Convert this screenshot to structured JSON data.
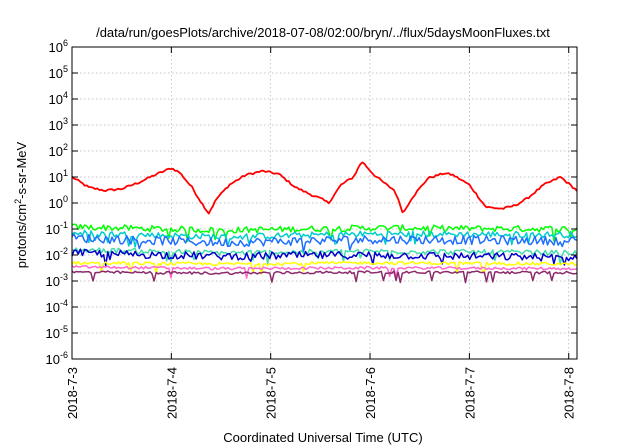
{
  "chart_data": {
    "type": "line",
    "title": "/data/run/goesPlots/archive/2018-07-08/02:00/bryn/../flux/5daysMoonFluxes.txt",
    "xlabel": "Coordinated Universal Time (UTC)",
    "ylabel": {
      "base": "protons/cm",
      "sup": "2",
      "rest": "-s-sr-MeV"
    },
    "y_scale": "log",
    "ylim": [
      1e-06,
      1000000.0
    ],
    "y_ticks": [
      {
        "value": 1e-06,
        "base": "10",
        "exp": "-6"
      },
      {
        "value": 1e-05,
        "base": "10",
        "exp": "-5"
      },
      {
        "value": 0.0001,
        "base": "10",
        "exp": "-4"
      },
      {
        "value": 0.001,
        "base": "10",
        "exp": "-3"
      },
      {
        "value": 0.01,
        "base": "10",
        "exp": "-2"
      },
      {
        "value": 0.1,
        "base": "10",
        "exp": "-1"
      },
      {
        "value": 1,
        "base": "10",
        "exp": "0"
      },
      {
        "value": 10,
        "base": "10",
        "exp": "1"
      },
      {
        "value": 100,
        "base": "10",
        "exp": "2"
      },
      {
        "value": 1000,
        "base": "10",
        "exp": "3"
      },
      {
        "value": 10000,
        "base": "10",
        "exp": "4"
      },
      {
        "value": 100000,
        "base": "10",
        "exp": "5"
      },
      {
        "value": 1000000,
        "base": "10",
        "exp": "6"
      }
    ],
    "xlim": [
      "2018-07-03T00:00",
      "2018-07-08T02:00"
    ],
    "x_ticks": [
      {
        "value": "2018-07-03T00:00",
        "label": "2018-7-3"
      },
      {
        "value": "2018-07-04T00:00",
        "label": "2018-7-4"
      },
      {
        "value": "2018-07-05T00:00",
        "label": "2018-7-5"
      },
      {
        "value": "2018-07-06T00:00",
        "label": "2018-7-6"
      },
      {
        "value": "2018-07-07T00:00",
        "label": "2018-7-7"
      },
      {
        "value": "2018-07-08T00:00",
        "label": "2018-7-8"
      }
    ],
    "grid": true,
    "series": [
      {
        "color": "#ff0000",
        "noise": 0.04,
        "points": [
          [
            "2018-07-03T00:00",
            10
          ],
          [
            "2018-07-03T04:00",
            4
          ],
          [
            "2018-07-03T08:00",
            3
          ],
          [
            "2018-07-03T12:00",
            3.5
          ],
          [
            "2018-07-03T16:00",
            6
          ],
          [
            "2018-07-03T20:00",
            12
          ],
          [
            "2018-07-04T00:00",
            22
          ],
          [
            "2018-07-04T02:00",
            15
          ],
          [
            "2018-07-04T05:00",
            4
          ],
          [
            "2018-07-04T07:00",
            1.2
          ],
          [
            "2018-07-04T09:00",
            0.4
          ],
          [
            "2018-07-04T11:00",
            1.5
          ],
          [
            "2018-07-04T14:00",
            5
          ],
          [
            "2018-07-04T18:00",
            12
          ],
          [
            "2018-07-04T22:00",
            17
          ],
          [
            "2018-07-05T02:00",
            13
          ],
          [
            "2018-07-05T06:00",
            4
          ],
          [
            "2018-07-05T10:00",
            2
          ],
          [
            "2018-07-05T12:00",
            1.5
          ],
          [
            "2018-07-05T14:00",
            1
          ],
          [
            "2018-07-05T17:00",
            5
          ],
          [
            "2018-07-05T20:00",
            10
          ],
          [
            "2018-07-05T22:00",
            40
          ],
          [
            "2018-07-06T01:00",
            12
          ],
          [
            "2018-07-06T04:00",
            5
          ],
          [
            "2018-07-06T06:00",
            3
          ],
          [
            "2018-07-06T08:00",
            0.4
          ],
          [
            "2018-07-06T10:00",
            1.5
          ],
          [
            "2018-07-06T14:00",
            9
          ],
          [
            "2018-07-06T18:00",
            14
          ],
          [
            "2018-07-06T20:00",
            12
          ],
          [
            "2018-07-07T00:00",
            5
          ],
          [
            "2018-07-07T04:00",
            0.7
          ],
          [
            "2018-07-07T08:00",
            0.6
          ],
          [
            "2018-07-07T11:00",
            0.8
          ],
          [
            "2018-07-07T14:00",
            1.5
          ],
          [
            "2018-07-07T18:00",
            5
          ],
          [
            "2018-07-07T22:00",
            10
          ],
          [
            "2018-07-08T02:00",
            3
          ]
        ]
      },
      {
        "color": "#00ff00",
        "noise": 0.12,
        "points": [
          [
            "2018-07-03T00:00",
            0.12
          ],
          [
            "2018-07-04T12:00",
            0.09
          ],
          [
            "2018-07-06T00:00",
            0.11
          ],
          [
            "2018-07-08T02:00",
            0.1
          ]
        ]
      },
      {
        "color": "#00cccc",
        "noise": 0.12,
        "points": [
          [
            "2018-07-03T00:00",
            0.07
          ],
          [
            "2018-07-04T12:00",
            0.05
          ],
          [
            "2018-07-06T00:00",
            0.065
          ],
          [
            "2018-07-08T02:00",
            0.06
          ]
        ]
      },
      {
        "color": "#1e6fff",
        "noise": 0.17,
        "points": [
          [
            "2018-07-03T00:00",
            0.045
          ],
          [
            "2018-07-04T12:00",
            0.03
          ],
          [
            "2018-07-06T00:00",
            0.04
          ],
          [
            "2018-07-08T02:00",
            0.035
          ]
        ]
      },
      {
        "color": "#44ddaa",
        "noise": 0.1,
        "points": [
          [
            "2018-07-03T00:00",
            0.016
          ],
          [
            "2018-07-04T12:00",
            0.012
          ],
          [
            "2018-07-06T00:00",
            0.014
          ],
          [
            "2018-07-08T02:00",
            0.012
          ]
        ]
      },
      {
        "color": "#0000c8",
        "noise": 0.15,
        "points": [
          [
            "2018-07-03T00:00",
            0.012
          ],
          [
            "2018-07-04T12:00",
            0.009
          ],
          [
            "2018-07-06T00:00",
            0.01
          ],
          [
            "2018-07-08T02:00",
            0.008
          ]
        ]
      },
      {
        "color": "#ffff00",
        "noise": 0.06,
        "points": [
          [
            "2018-07-03T00:00",
            0.005
          ],
          [
            "2018-07-04T12:00",
            0.0045
          ],
          [
            "2018-07-06T00:00",
            0.005
          ],
          [
            "2018-07-08T02:00",
            0.0045
          ]
        ]
      },
      {
        "color": "#ff66cc",
        "noise": 0.05,
        "points": [
          [
            "2018-07-03T00:00",
            0.0035
          ],
          [
            "2018-07-04T12:00",
            0.003
          ],
          [
            "2018-07-06T00:00",
            0.0032
          ],
          [
            "2018-07-08T02:00",
            0.003
          ]
        ]
      },
      {
        "color": "#8b2a6b",
        "noise": 0.05,
        "points": [
          [
            "2018-07-03T00:00",
            0.0022
          ],
          [
            "2018-07-04T12:00",
            0.002
          ],
          [
            "2018-07-06T00:00",
            0.0022
          ],
          [
            "2018-07-08T02:00",
            0.0021
          ]
        ]
      }
    ]
  }
}
